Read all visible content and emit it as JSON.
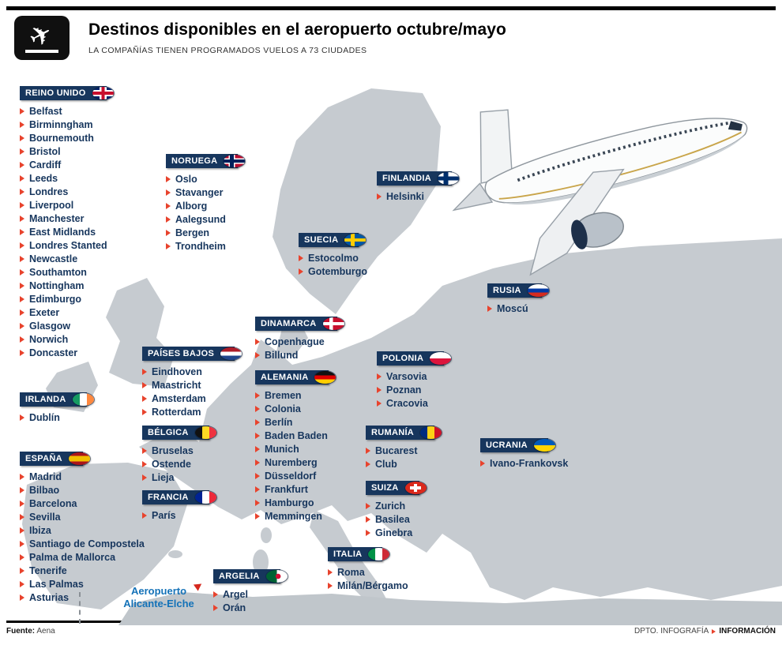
{
  "header": {
    "title": "Destinos disponibles en el aeropuerto octubre/mayo",
    "subtitle": "LA COMPAÑÍAS TIENEN PROGRAMADOS VUELOS A 73 CIUDADES",
    "icon": "plane-takeoff-icon"
  },
  "airport_label": {
    "line1": "Aeropuerto",
    "line2": "Alicante-Elche"
  },
  "countries": [
    {
      "name": "REINO UNIDO",
      "flag_icon": "uk-flag-icon",
      "cities": [
        "Belfast",
        "Birminngham",
        "Bournemouth",
        "Bristol",
        "Cardiff",
        "Leeds",
        "Londres",
        "Liverpool",
        "Manchester",
        "East Midlands",
        "Londres Stanted",
        "Newcastle",
        "Southamton",
        "Nottingham",
        "Edimburgo",
        "Exeter",
        "Glasgow",
        "Norwich",
        "Doncaster"
      ]
    },
    {
      "name": "NORUEGA",
      "flag_icon": "norway-flag-icon",
      "cities": [
        "Oslo",
        "Stavanger",
        "Alborg",
        "Aalegsund",
        "Bergen",
        "Trondheim"
      ]
    },
    {
      "name": "FINLANDIA",
      "flag_icon": "finland-flag-icon",
      "cities": [
        "Helsinki"
      ]
    },
    {
      "name": "SUECIA",
      "flag_icon": "sweden-flag-icon",
      "cities": [
        "Estocolmo",
        "Gotemburgo"
      ]
    },
    {
      "name": "RUSIA",
      "flag_icon": "russia-flag-icon",
      "cities": [
        "Moscú"
      ]
    },
    {
      "name": "DINAMARCA",
      "flag_icon": "denmark-flag-icon",
      "cities": [
        "Copenhague",
        "Billund"
      ]
    },
    {
      "name": "POLONIA",
      "flag_icon": "poland-flag-icon",
      "cities": [
        "Varsovia",
        "Poznan",
        "Cracovia"
      ]
    },
    {
      "name": "PAÍSES BAJOS",
      "flag_icon": "netherlands-flag-icon",
      "cities": [
        "Eindhoven",
        "Maastricht",
        "Amsterdam",
        "Rotterdam"
      ]
    },
    {
      "name": "ALEMANIA",
      "flag_icon": "germany-flag-icon",
      "cities": [
        "Bremen",
        "Colonia",
        "Berlín",
        "Baden Baden",
        "Munich",
        "Nuremberg",
        "Düsseldorf",
        "Frankfurt",
        "Hamburgo",
        "Memmingen"
      ]
    },
    {
      "name": "IRLANDA",
      "flag_icon": "ireland-flag-icon",
      "cities": [
        "Dublín"
      ]
    },
    {
      "name": "BÉLGICA",
      "flag_icon": "belgium-flag-icon",
      "cities": [
        "Bruselas",
        "Ostende",
        "Lieja"
      ]
    },
    {
      "name": "RUMANÍA",
      "flag_icon": "romania-flag-icon",
      "cities": [
        "Bucarest",
        "Club"
      ]
    },
    {
      "name": "UCRANIA",
      "flag_icon": "ukraine-flag-icon",
      "cities": [
        "Ivano-Frankovsk"
      ]
    },
    {
      "name": "ESPAÑA",
      "flag_icon": "spain-flag-icon",
      "cities": [
        "Madrid",
        "Bilbao",
        "Barcelona",
        "Sevilla",
        "Ibiza",
        "Santiago de Compostela",
        "Palma de Mallorca",
        "Tenerife",
        "Las Palmas",
        "Asturias"
      ]
    },
    {
      "name": "FRANCIA",
      "flag_icon": "france-flag-icon",
      "cities": [
        "París"
      ]
    },
    {
      "name": "SUIZA",
      "flag_icon": "switzerland-flag-icon",
      "cities": [
        "Zurich",
        "Basilea",
        "Ginebra"
      ]
    },
    {
      "name": "ITALIA",
      "flag_icon": "italy-flag-icon",
      "cities": [
        "Roma",
        "Milán/Bérgamo"
      ]
    },
    {
      "name": "ARGELIA",
      "flag_icon": "algeria-flag-icon",
      "cities": [
        "Argel",
        "Orán"
      ]
    }
  ],
  "footer": {
    "source_label": "Fuente:",
    "source_value": "Aena",
    "credit_left": "DPTO. INFOGRAFÍA",
    "credit_right": "INFORMACIÓN"
  },
  "colors": {
    "bar_navy": "#17365d",
    "bullet_red": "#e8432d",
    "airport_blue": "#1472b8",
    "land_gray": "#c6cbd0"
  }
}
